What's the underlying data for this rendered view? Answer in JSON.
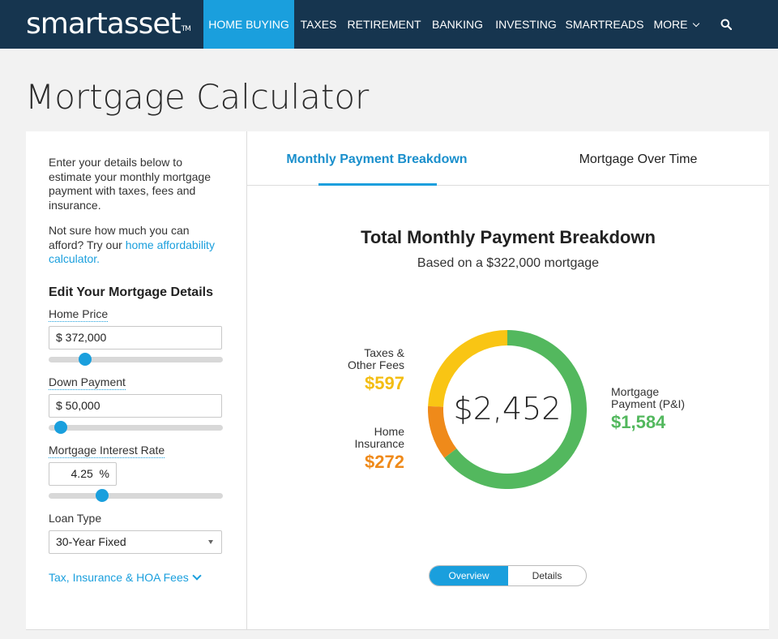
{
  "nav": {
    "logo_text": "smartasset",
    "logo_tm": "TM",
    "items": [
      "HOME BUYING",
      "TAXES",
      "RETIREMENT",
      "BANKING",
      "INVESTING",
      "SMARTREADS",
      "MORE"
    ],
    "active_index": 0,
    "search_icon": "search-icon"
  },
  "page": {
    "title": "Mortgage Calculator"
  },
  "left": {
    "intro_1": "Enter your details below to estimate your monthly mortgage payment with taxes, fees and insurance.",
    "intro_2_prefix": "Not sure how much you can afford? Try our ",
    "intro_2_link": "home affordability calculator.",
    "section_title": "Edit Your Mortgage Details",
    "home_price": {
      "label": "Home Price",
      "value": "$ 372,000",
      "slider_fraction": 0.21
    },
    "down_payment": {
      "label": "Down Payment",
      "value": "$ 50,000",
      "slider_fraction": 0.07
    },
    "interest_rate": {
      "label": "Mortgage Interest Rate",
      "value": "4.25",
      "unit": "%",
      "slider_fraction": 0.31
    },
    "loan_type": {
      "label": "Loan Type",
      "value": "30-Year Fixed"
    },
    "expand_link": "Tax, Insurance & HOA Fees"
  },
  "tabs": {
    "active": "Monthly Payment Breakdown",
    "inactive": "Mortgage Over Time"
  },
  "breakdown": {
    "title": "Total Monthly Payment Breakdown",
    "subtitle": "Based on a $322,000 mortgage",
    "total": "$2,452",
    "taxes_label_1": "Taxes &",
    "taxes_label_2": "Other Fees",
    "taxes_value": "$597",
    "insurance_label_1": "Home",
    "insurance_label_2": "Insurance",
    "insurance_value": "$272",
    "mortgage_label_1": "Mortgage",
    "mortgage_label_2": "Payment (P&I)",
    "mortgage_value": "$1,584",
    "toggle_on": "Overview",
    "toggle_off": "Details"
  },
  "colors": {
    "accent": "#1a9fdd",
    "nav_bg": "#16354f",
    "taxes": "#f9c514",
    "insurance": "#ef8a1a",
    "mortgage": "#53b85e"
  },
  "chart_data": {
    "type": "pie",
    "categories": [
      "Taxes & Other Fees",
      "Home Insurance",
      "Mortgage Payment (P&I)"
    ],
    "values": [
      597,
      272,
      1584
    ],
    "total": 2452
  }
}
